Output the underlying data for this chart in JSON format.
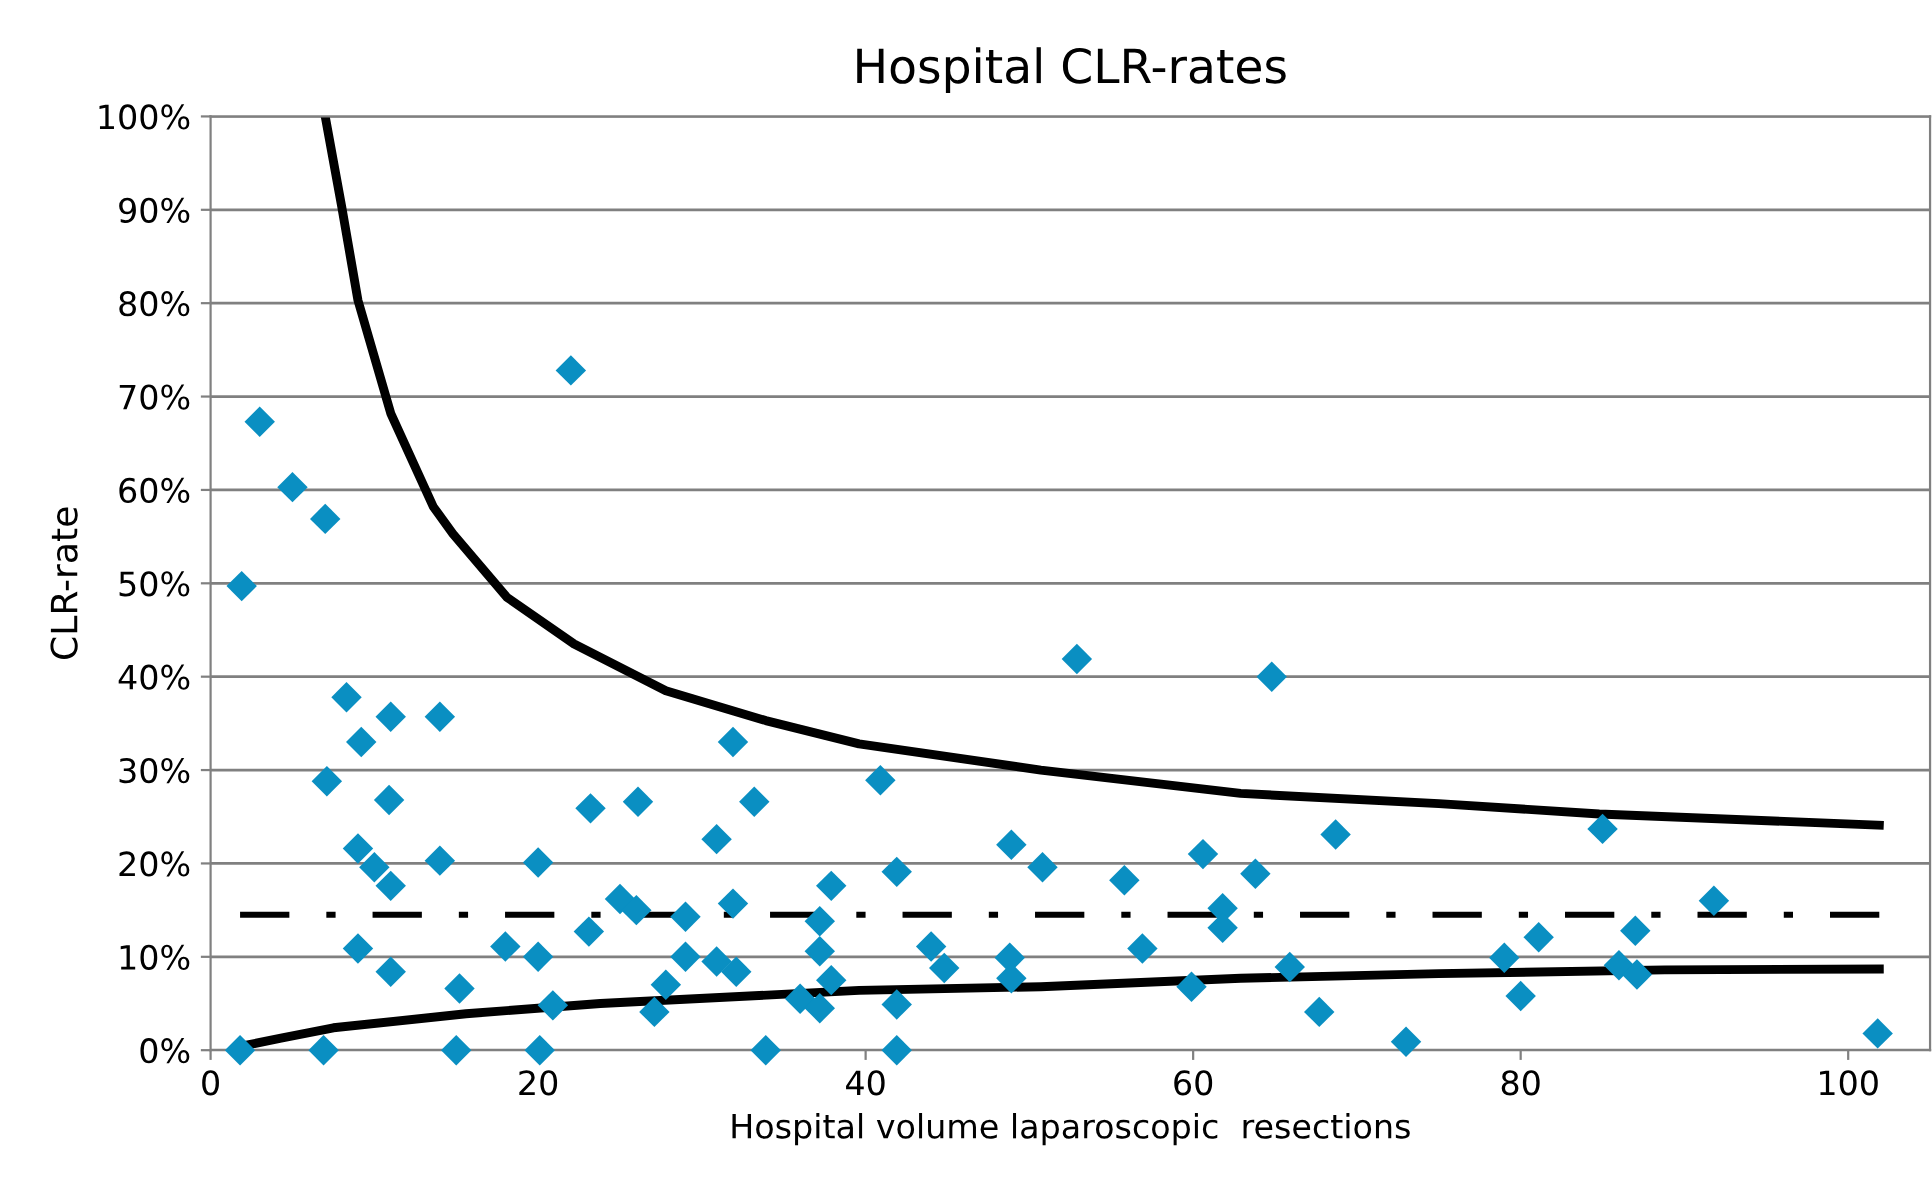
{
  "chart_data": {
    "type": "scatter",
    "title": "Hospital CLR-rates",
    "xlabel": "Hospital volume laparoscopic  resections",
    "ylabel": "CLR-rate",
    "xlim": [
      0,
      105
    ],
    "xticks": [
      0,
      20,
      40,
      60,
      80,
      100
    ],
    "ylim": [
      0,
      100
    ],
    "yticks": [
      {
        "value": 0,
        "label": "0%"
      },
      {
        "value": 10,
        "label": "10%"
      },
      {
        "value": 20,
        "label": "20%"
      },
      {
        "value": 30,
        "label": "30%"
      },
      {
        "value": 40,
        "label": "40%"
      },
      {
        "value": 50,
        "label": "50%"
      },
      {
        "value": 60,
        "label": "60%"
      },
      {
        "value": 70,
        "label": "70%"
      },
      {
        "value": 80,
        "label": "80%"
      },
      {
        "value": 90,
        "label": "90%"
      },
      {
        "value": 100,
        "label": "100%"
      }
    ],
    "grid": "y",
    "legend": false,
    "series": [
      {
        "color": "#0a8fc2",
        "marker": "diamond",
        "x": [
          1.9,
          3.0,
          5.0,
          7.0,
          8.3,
          9.2,
          7.1,
          11.0,
          14.0,
          10.9,
          9.0,
          10.0,
          11.0,
          14.0,
          9.0,
          11.0,
          15.2,
          1.8,
          6.9,
          15.0,
          20.1,
          22.0,
          23.2,
          26.1,
          20.0,
          23.1,
          25.0,
          26.0,
          18.0,
          20.0,
          20.9,
          27.1,
          27.8,
          29.0,
          29.0,
          30.9,
          31.9,
          33.2,
          31.9,
          30.9,
          32.1,
          33.9,
          37.9,
          37.2,
          37.2,
          37.9,
          36.0,
          37.2,
          52.9,
          64.8,
          40.9,
          41.9,
          48.9,
          50.8,
          55.8,
          60.6,
          63.8,
          68.7,
          61.8,
          61.8,
          44.0,
          44.8,
          48.8,
          48.9,
          56.9,
          59.9,
          65.9,
          41.9,
          41.9,
          67.7,
          73.0,
          85.0,
          91.8,
          87.0,
          81.1,
          79.0,
          80.0,
          86.0,
          87.1,
          101.8
        ],
        "values": [
          49.7,
          67.3,
          60.3,
          56.9,
          37.8,
          33.0,
          28.8,
          35.7,
          35.7,
          26.8,
          21.6,
          19.6,
          17.6,
          20.3,
          10.9,
          8.4,
          6.6,
          0,
          0,
          0,
          0,
          72.8,
          25.9,
          26.6,
          20.1,
          12.7,
          16.2,
          15.0,
          11.1,
          10.0,
          4.8,
          4.1,
          7.0,
          14.3,
          10.0,
          22.6,
          33.0,
          26.6,
          15.7,
          9.5,
          8.4,
          0,
          17.6,
          13.8,
          10.6,
          7.5,
          5.5,
          4.5,
          41.9,
          40.0,
          28.9,
          19.1,
          22.0,
          19.6,
          18.2,
          21.0,
          18.9,
          23.1,
          15.2,
          13.1,
          11.1,
          8.8,
          9.9,
          7.7,
          10.9,
          6.8,
          8.9,
          4.9,
          0,
          4.1,
          0.9,
          23.7,
          16.0,
          12.8,
          12.1,
          9.9,
          5.8,
          9.1,
          8.1,
          1.8
        ]
      },
      {
        "type": "line",
        "color": "#000000",
        "line_style": "solid",
        "x": [
          7.0,
          8.0,
          9.0,
          11.0,
          13.6,
          14.8,
          18.1,
          22.2,
          27.8,
          33.9,
          39.6,
          50.7,
          62.9,
          75.0,
          84.8,
          101.9
        ],
        "values": [
          100,
          90.4,
          80.3,
          68.2,
          58.2,
          55.3,
          48.5,
          43.5,
          38.5,
          35.3,
          32.8,
          30.0,
          27.5,
          26.4,
          25.3,
          24.1
        ]
      },
      {
        "type": "line",
        "color": "#000000",
        "line_style": "solid",
        "x": [
          1.8,
          4.3,
          7.5,
          15.6,
          23.8,
          39.6,
          50.7,
          62.9,
          75.0,
          88.8,
          101.9
        ],
        "values": [
          0.4,
          1.3,
          2.4,
          3.9,
          5.0,
          6.4,
          6.8,
          7.7,
          8.2,
          8.6,
          8.7
        ]
      },
      {
        "type": "line",
        "color": "#000000",
        "line_style": "dashdot",
        "x": [
          1.8,
          101.9
        ],
        "values": [
          14.5,
          14.5
        ]
      }
    ]
  }
}
